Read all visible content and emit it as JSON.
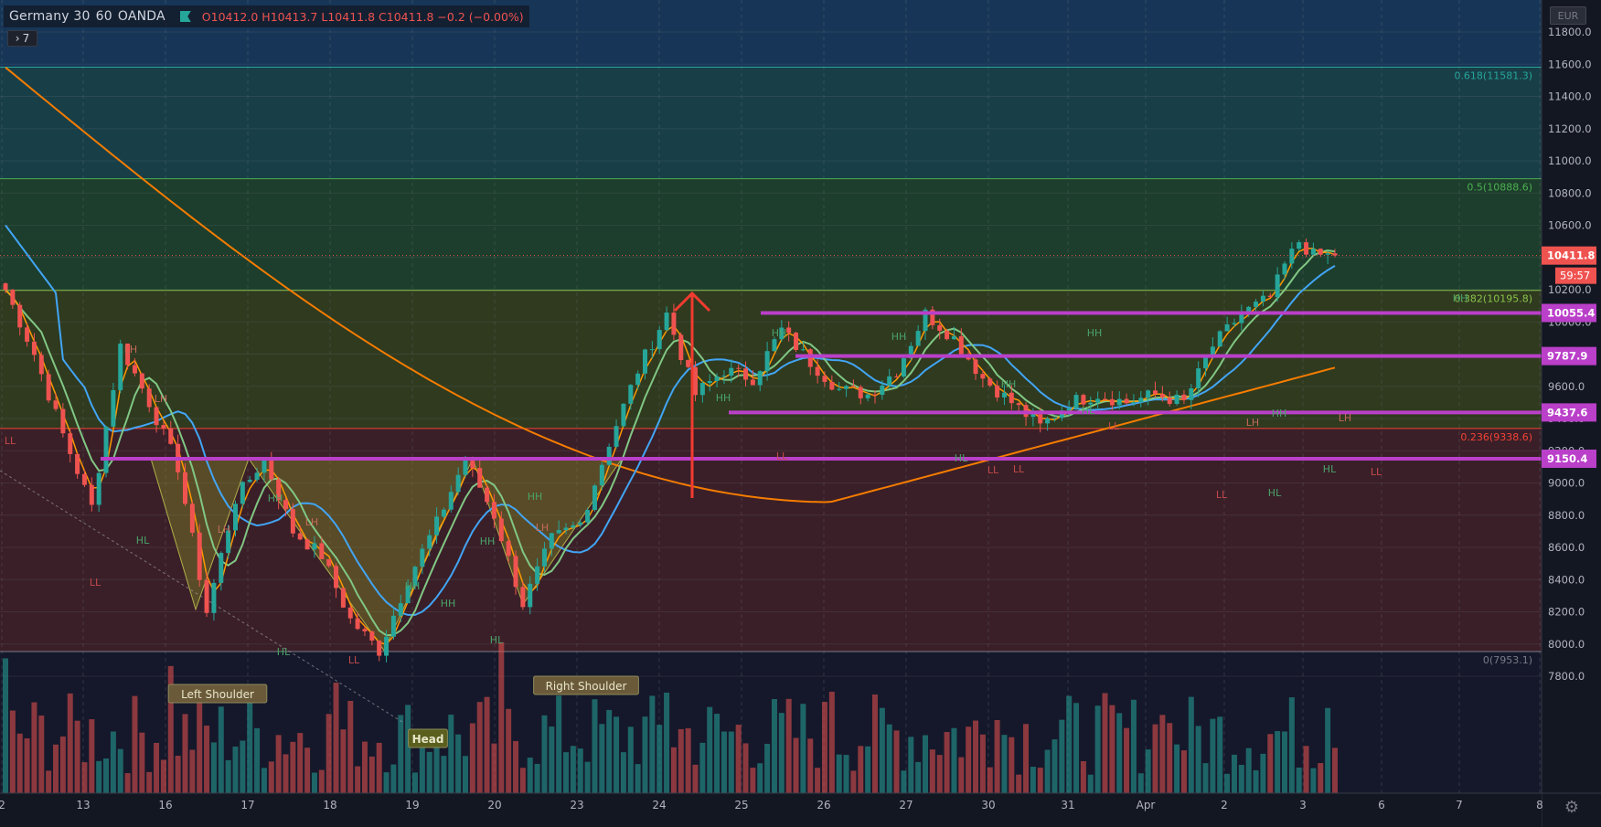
{
  "header": {
    "symbol": "Germany 30",
    "interval": "60",
    "broker": "OANDA",
    "open": "O10412.0",
    "high": "H10413.7",
    "low": "L10411.8",
    "close": "C10411.8",
    "change": "−0.2 (−0.00%)",
    "indicators_toggle": "7",
    "currency": "EUR"
  },
  "colors": {
    "background": "#131722",
    "bull": "#26a69a",
    "bear": "#ef5350",
    "level_line": "#ba3fc9",
    "ema_fast": "#ff9800",
    "ema_slow": "#f57c00",
    "ma_blue": "#42a5f5",
    "ma_green": "#81c784",
    "arrow": "#f23b30"
  },
  "price_axis": {
    "ticks": [
      "11800.0",
      "11600.0",
      "11400.0",
      "11200.0",
      "11000.0",
      "10800.0",
      "10600.0",
      "10400.0",
      "10200.0",
      "10000.0",
      "9800.0",
      "9600.0",
      "9400.0",
      "9200.0",
      "9000.0",
      "8800.0",
      "8600.0",
      "8400.0",
      "8200.0",
      "8000.0",
      "7800.0"
    ],
    "last_price": "10411.8",
    "countdown": "59:57",
    "level_labels": [
      "10055.4",
      "9787.9",
      "9437.6",
      "9150.4"
    ]
  },
  "time_axis": {
    "labels": [
      "2",
      "13",
      "16",
      "17",
      "18",
      "19",
      "20",
      "23",
      "24",
      "25",
      "26",
      "27",
      "30",
      "31",
      "Apr",
      "2",
      "3",
      "6",
      "7",
      "8"
    ]
  },
  "fib_labels": [
    "0.618(11581.3)",
    "0.5(10888.6)",
    "0.382(10195.8)",
    "0.236(9338.6)",
    "0(7953.1)"
  ],
  "pattern_labels": [
    "Left Shoulder",
    "Head",
    "Right Shoulder"
  ],
  "swing_labels": [
    "LH",
    "HH",
    "HL",
    "LL"
  ],
  "icons": [
    "flag-icon",
    "chevron-right-icon",
    "gear-icon"
  ],
  "chart_data": {
    "type": "candlestick",
    "title": "Germany 30 · 60 · OANDA",
    "ylim": [
      7650,
      11950
    ],
    "resistance_levels": [
      10055.4,
      9787.9,
      9437.6,
      9150.4
    ],
    "fibonacci": [
      {
        "ratio": "0.618",
        "price": 11581.3
      },
      {
        "ratio": "0.5",
        "price": 10888.6
      },
      {
        "ratio": "0.382",
        "price": 10195.8
      },
      {
        "ratio": "0.236",
        "price": 9338.6
      },
      {
        "ratio": "0",
        "price": 7953.1
      }
    ],
    "pattern": "Inverse Head and Shoulders",
    "neckline": 9150.4,
    "head_low": 7960,
    "shoulder_lows": [
      8215,
      8245
    ],
    "last_candle": {
      "open": 10412.0,
      "high": 10413.7,
      "low": 10411.8,
      "close": 10411.8
    },
    "price_path": [
      [
        0,
        10200
      ],
      [
        4,
        9800
      ],
      [
        8,
        9300
      ],
      [
        12,
        8850
      ],
      [
        16,
        9850
      ],
      [
        20,
        9500
      ],
      [
        24,
        9100
      ],
      [
        28,
        8200
      ],
      [
        32,
        8900
      ],
      [
        36,
        9150
      ],
      [
        40,
        8700
      ],
      [
        44,
        8550
      ],
      [
        48,
        8150
      ],
      [
        52,
        7960
      ],
      [
        56,
        8400
      ],
      [
        60,
        8750
      ],
      [
        64,
        9150
      ],
      [
        68,
        8800
      ],
      [
        72,
        8250
      ],
      [
        76,
        8650
      ],
      [
        80,
        8750
      ],
      [
        84,
        9250
      ],
      [
        88,
        9700
      ],
      [
        92,
        10050
      ],
      [
        96,
        9550
      ],
      [
        100,
        9700
      ],
      [
        104,
        9650
      ],
      [
        108,
        9950
      ],
      [
        112,
        9750
      ],
      [
        116,
        9580
      ],
      [
        120,
        9550
      ],
      [
        124,
        9700
      ],
      [
        128,
        10050
      ],
      [
        132,
        9900
      ],
      [
        136,
        9650
      ],
      [
        140,
        9500
      ],
      [
        144,
        9350
      ],
      [
        148,
        9500
      ],
      [
        152,
        9550
      ],
      [
        156,
        9500
      ],
      [
        160,
        9550
      ],
      [
        164,
        9500
      ],
      [
        168,
        9850
      ],
      [
        172,
        10050
      ],
      [
        176,
        10150
      ],
      [
        178,
        10350
      ],
      [
        180,
        10500
      ],
      [
        182,
        10412
      ]
    ]
  }
}
